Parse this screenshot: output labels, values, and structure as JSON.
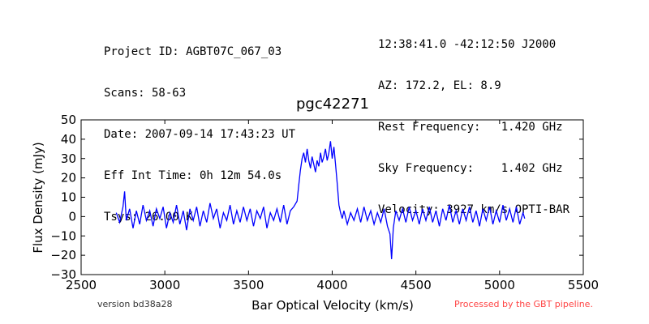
{
  "header_left": [
    "Project ID: AGBT07C_067_03",
    "Scans: 58-63",
    "Date: 2007-09-14 17:43:23 UT",
    "Eff Int Time: 0h 12m 54.0s",
    "Tsys: 26.00 K"
  ],
  "header_right": [
    "12:38:41.0 -42:12:50 J2000",
    "AZ: 172.2, EL: 8.9",
    "Rest Frequency:   1.420 GHz",
    "Sky Frequency:    1.402 GHz",
    "Velocity: 3927 km/s OPTI-BAR"
  ],
  "footer": {
    "version": "version bd38a28",
    "processed": "Processed by the GBT pipeline."
  },
  "chart_data": {
    "type": "line",
    "title": "pgc42271",
    "xlabel": "Bar Optical Velocity (km/s)",
    "ylabel": "Flux Density (mJy)",
    "xlim": [
      2500,
      5500
    ],
    "ylim": [
      -30,
      50
    ],
    "xticks": [
      2500,
      3000,
      3500,
      4000,
      4500,
      5000,
      5500
    ],
    "yticks": [
      -30,
      -20,
      -10,
      0,
      10,
      20,
      30,
      40,
      50
    ],
    "grid": false,
    "series_color": "#0000ff",
    "series": [
      {
        "points": [
          [
            2710,
            2
          ],
          [
            2730,
            -3
          ],
          [
            2750,
            5
          ],
          [
            2760,
            13
          ],
          [
            2770,
            -2
          ],
          [
            2790,
            4
          ],
          [
            2810,
            -6
          ],
          [
            2830,
            3
          ],
          [
            2850,
            -4
          ],
          [
            2870,
            6
          ],
          [
            2890,
            -2
          ],
          [
            2910,
            3
          ],
          [
            2930,
            -5
          ],
          [
            2950,
            4
          ],
          [
            2970,
            -1
          ],
          [
            2990,
            5
          ],
          [
            3010,
            -6
          ],
          [
            3030,
            2
          ],
          [
            3050,
            -3
          ],
          [
            3070,
            6
          ],
          [
            3090,
            -4
          ],
          [
            3110,
            3
          ],
          [
            3130,
            -7
          ],
          [
            3150,
            4
          ],
          [
            3170,
            -2
          ],
          [
            3190,
            5
          ],
          [
            3210,
            -5
          ],
          [
            3230,
            3
          ],
          [
            3250,
            -3
          ],
          [
            3270,
            7
          ],
          [
            3290,
            -1
          ],
          [
            3310,
            4
          ],
          [
            3330,
            -6
          ],
          [
            3350,
            2
          ],
          [
            3370,
            -2
          ],
          [
            3390,
            6
          ],
          [
            3410,
            -4
          ],
          [
            3430,
            3
          ],
          [
            3450,
            -3
          ],
          [
            3470,
            5
          ],
          [
            3490,
            -2
          ],
          [
            3510,
            4
          ],
          [
            3530,
            -5
          ],
          [
            3550,
            3
          ],
          [
            3570,
            -1
          ],
          [
            3590,
            5
          ],
          [
            3610,
            -6
          ],
          [
            3630,
            2
          ],
          [
            3650,
            -2
          ],
          [
            3670,
            4
          ],
          [
            3690,
            -3
          ],
          [
            3710,
            6
          ],
          [
            3730,
            -4
          ],
          [
            3750,
            3
          ],
          [
            3770,
            5
          ],
          [
            3790,
            8
          ],
          [
            3800,
            16
          ],
          [
            3810,
            24
          ],
          [
            3820,
            30
          ],
          [
            3830,
            33
          ],
          [
            3840,
            28
          ],
          [
            3850,
            35
          ],
          [
            3860,
            29
          ],
          [
            3870,
            25
          ],
          [
            3880,
            31
          ],
          [
            3890,
            27
          ],
          [
            3900,
            23
          ],
          [
            3910,
            29
          ],
          [
            3920,
            26
          ],
          [
            3930,
            33
          ],
          [
            3940,
            28
          ],
          [
            3950,
            31
          ],
          [
            3960,
            35
          ],
          [
            3970,
            29
          ],
          [
            3980,
            33
          ],
          [
            3990,
            39
          ],
          [
            4000,
            30
          ],
          [
            4010,
            36
          ],
          [
            4020,
            27
          ],
          [
            4030,
            17
          ],
          [
            4040,
            6
          ],
          [
            4050,
            2
          ],
          [
            4060,
            -1
          ],
          [
            4070,
            3
          ],
          [
            4090,
            -4
          ],
          [
            4110,
            2
          ],
          [
            4130,
            -2
          ],
          [
            4150,
            4
          ],
          [
            4170,
            -3
          ],
          [
            4190,
            5
          ],
          [
            4210,
            -2
          ],
          [
            4230,
            3
          ],
          [
            4250,
            -4
          ],
          [
            4270,
            2
          ],
          [
            4290,
            -3
          ],
          [
            4310,
            4
          ],
          [
            4330,
            -5
          ],
          [
            4345,
            -9
          ],
          [
            4355,
            -22
          ],
          [
            4365,
            -6
          ],
          [
            4380,
            3
          ],
          [
            4400,
            -2
          ],
          [
            4420,
            4
          ],
          [
            4440,
            -3
          ],
          [
            4460,
            5
          ],
          [
            4480,
            -2
          ],
          [
            4500,
            3
          ],
          [
            4520,
            -4
          ],
          [
            4540,
            4
          ],
          [
            4560,
            -2
          ],
          [
            4580,
            5
          ],
          [
            4600,
            -3
          ],
          [
            4620,
            3
          ],
          [
            4640,
            -5
          ],
          [
            4660,
            4
          ],
          [
            4680,
            -2
          ],
          [
            4700,
            6
          ],
          [
            4720,
            -3
          ],
          [
            4740,
            3
          ],
          [
            4760,
            -4
          ],
          [
            4780,
            4
          ],
          [
            4800,
            -2
          ],
          [
            4820,
            5
          ],
          [
            4840,
            -3
          ],
          [
            4860,
            3
          ],
          [
            4880,
            -5
          ],
          [
            4900,
            4
          ],
          [
            4920,
            -2
          ],
          [
            4940,
            5
          ],
          [
            4960,
            -4
          ],
          [
            4980,
            3
          ],
          [
            5000,
            -3
          ],
          [
            5020,
            6
          ],
          [
            5040,
            -2
          ],
          [
            5060,
            4
          ],
          [
            5080,
            -3
          ],
          [
            5100,
            5
          ],
          [
            5120,
            -4
          ],
          [
            5140,
            2
          ],
          [
            5150,
            -1
          ]
        ]
      }
    ]
  }
}
